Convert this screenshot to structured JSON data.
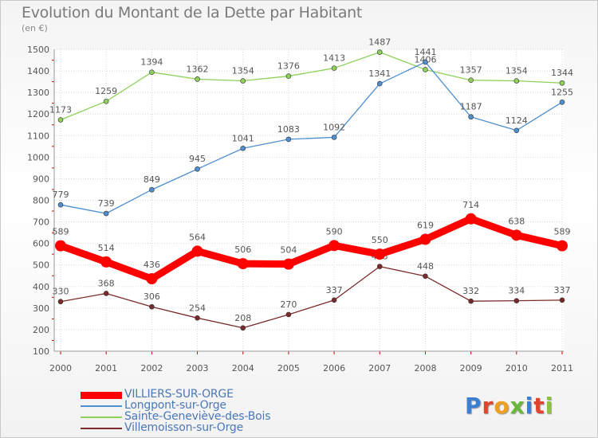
{
  "title": "Evolution du Montant de la Dette par Habitant",
  "subtitle": "(en €)",
  "logo_text": "Proxiti",
  "chart_data": {
    "type": "line",
    "title": "Evolution du Montant de la Dette par Habitant",
    "ylabel": "(en €)",
    "xlabel": "",
    "ylim": [
      100,
      1500
    ],
    "yticks": [
      "100",
      "200",
      "300",
      "400",
      "500",
      "600",
      "700",
      "800",
      "900",
      "1000",
      "1100",
      "1200",
      "1300",
      "1400",
      "1500"
    ],
    "categories": [
      "2000",
      "2001",
      "2002",
      "2003",
      "2004",
      "2005",
      "2006",
      "2007",
      "2008",
      "2009",
      "2010",
      "2011"
    ],
    "grid": true,
    "legend_position": "bottom-left",
    "series": [
      {
        "name": "VILLIERS-SUR-ORGE",
        "color": "#ff0000",
        "values": [
          589,
          514,
          436,
          564,
          506,
          504,
          590,
          550,
          619,
          714,
          638,
          589
        ],
        "labels": [
          "589",
          "514",
          "436",
          "564",
          "506",
          "504",
          "590",
          "550",
          "619",
          "714",
          "638",
          "589"
        ]
      },
      {
        "name": "Longpont-sur-Orge",
        "color": "#4f8fd0",
        "values": [
          779,
          739,
          849,
          945,
          1041,
          1083,
          1092,
          1341,
          1441,
          1187,
          1124,
          1255
        ],
        "labels": [
          "779",
          "739",
          "849",
          "945",
          "1041",
          "1083",
          "1092",
          "1341",
          "1441",
          "1187",
          "1124",
          "1255"
        ]
      },
      {
        "name": "Sainte-Geneviève-des-Bois",
        "color": "#8ed05a",
        "values": [
          1173,
          1259,
          1394,
          1362,
          1354,
          1376,
          1413,
          1487,
          1406,
          1357,
          1354,
          1344
        ],
        "labels": [
          "1173",
          "1259",
          "1394",
          "1362",
          "1354",
          "1376",
          "1413",
          "1487",
          "1406",
          "1357",
          "1354",
          "1344"
        ]
      },
      {
        "name": "Villemoisson-sur-Orge",
        "color": "#7a2a2a",
        "values": [
          330,
          368,
          306,
          254,
          208,
          270,
          337,
          493,
          448,
          332,
          334,
          337
        ],
        "labels": [
          "330",
          "368",
          "306",
          "254",
          "208",
          "270",
          "337",
          "493",
          "448",
          "332",
          "334",
          "337"
        ]
      }
    ]
  }
}
